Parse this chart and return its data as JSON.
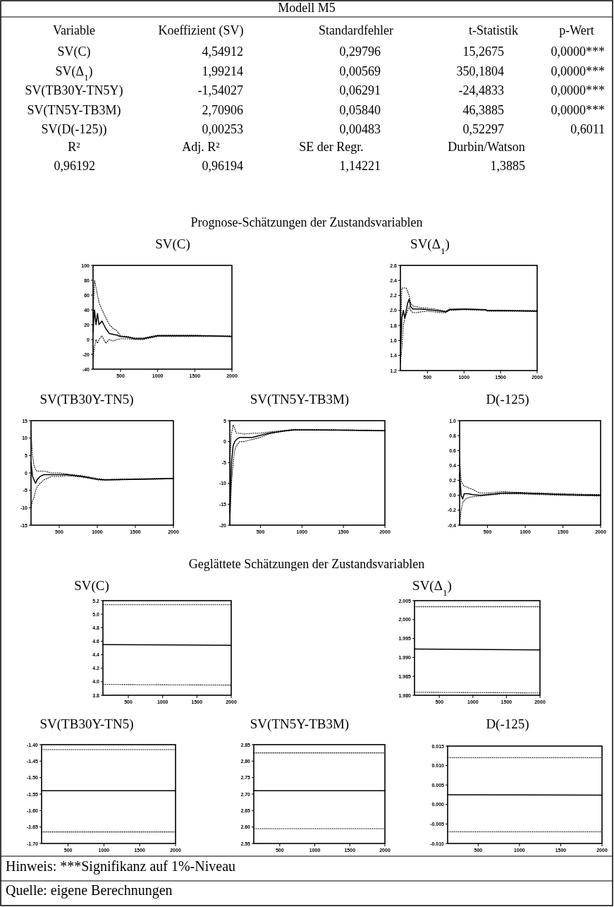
{
  "chart_data": [
    {
      "type": "other",
      "title": "Modell M5",
      "categories": [
        "Variable",
        "Koeffizient (SV)",
        "Standardfehler",
        "t-Statistik",
        "p-Wert"
      ],
      "annotations": [
        "SV(C)",
        "4,54912",
        "0,29796",
        "15,2675",
        "0,0000***",
        "SV(Δ$_{1}$)",
        "1,99214",
        "0,00569",
        "350,1804",
        "0,0000***",
        "SV(TB30Y-TN5Y)",
        "-1,54027",
        "0,06291",
        "-24,4833",
        "0,0000***",
        "SV(TN5Y-TB3M)",
        "2,70906",
        "0,05840",
        "46,3885",
        "0,0000***",
        "SV(D(-125))",
        "0,00253",
        "0,00483",
        "0,52297",
        "0,6011"
      ]
    },
    {
      "type": "other",
      "categories": [
        "R²",
        "Adj. R²",
        "SE der Regr.",
        "Durbin/Watson"
      ],
      "annotations": [
        "0,96192",
        "0,96194",
        "1,14221",
        "1,3885"
      ]
    },
    {
      "type": "line",
      "title": "SV(C)",
      "subtitle": "Prognose-Schätzungen der Zustandsvariablen",
      "xlim": [
        130,
        2000
      ],
      "xticks": [
        500,
        1000,
        1500,
        2000
      ],
      "ylim": [
        -40,
        100
      ],
      "yticks": [
        -40,
        -20,
        0,
        20,
        40,
        60,
        80,
        100
      ],
      "x": [
        130,
        150,
        170,
        190,
        210,
        250,
        300,
        350,
        400,
        450,
        500,
        600,
        700,
        800,
        900,
        1000,
        1200,
        1500,
        1700,
        2000
      ],
      "series": [
        {
          "color": "#000000",
          "line_style": "solid",
          "values": [
            10,
            40,
            20,
            35,
            20,
            25,
            15,
            8,
            7,
            6,
            4,
            3,
            1,
            1,
            3,
            5,
            5,
            5,
            5,
            4
          ]
        },
        {
          "color": "#000000",
          "line_style": "dotted",
          "values": [
            30,
            80,
            70,
            60,
            50,
            40,
            30,
            20,
            15,
            12,
            5,
            4,
            2,
            2,
            4,
            6,
            6,
            6,
            5,
            5
          ]
        },
        {
          "color": "#000000",
          "line_style": "dotted",
          "values": [
            -25,
            -10,
            0,
            -5,
            0,
            5,
            -5,
            0,
            -2,
            0,
            1,
            1,
            0,
            0,
            2,
            4,
            4,
            4,
            4,
            4
          ]
        }
      ]
    },
    {
      "type": "line",
      "title": "SV(Δ$_{1}$)",
      "xlim": [
        130,
        2000
      ],
      "xticks": [
        500,
        1000,
        1500,
        2000
      ],
      "ylim": [
        1.2,
        2.6
      ],
      "yticks": [
        1.2,
        1.4,
        1.6,
        1.8,
        {
          "value": 2,
          "label": "2.0"
        },
        2.2,
        2.4,
        2.6
      ],
      "x": [
        130,
        150,
        170,
        190,
        210,
        230,
        250,
        270,
        300,
        350,
        400,
        500,
        600,
        700,
        750,
        800,
        1000,
        1300,
        1320,
        1500,
        2000
      ],
      "series": [
        {
          "color": "#000000",
          "line_style": "solid",
          "values": [
            1.4,
            1.9,
            2.0,
            1.9,
            2.0,
            2.1,
            2.15,
            2.05,
            2.02,
            2.02,
            2.02,
            2.01,
            2.0,
            1.99,
            1.98,
            2.01,
            2.02,
            2.01,
            2.0,
            2.0,
            1.99
          ]
        },
        {
          "color": "#000000",
          "line_style": "dotted",
          "values": [
            1.6,
            2.3,
            2.3,
            2.3,
            2.3,
            2.25,
            2.2,
            2.1,
            2.06,
            2.05,
            2.04,
            2.03,
            2.02,
            2.0,
            1.99,
            2.02,
            2.02,
            2.01,
            2.0,
            2.0,
            2.0
          ]
        },
        {
          "color": "#000000",
          "line_style": "dotted",
          "values": [
            1.3,
            1.5,
            1.8,
            1.9,
            1.95,
            2.0,
            2.05,
            2.0,
            1.97,
            1.97,
            1.98,
            1.99,
            1.98,
            1.97,
            1.97,
            2.0,
            2.01,
            2.0,
            1.99,
            1.99,
            1.99
          ]
        }
      ]
    },
    {
      "type": "line",
      "title": "SV(TB30Y-TN5)",
      "xlim": [
        130,
        2000
      ],
      "xticks": [
        500,
        1000,
        1500,
        2000
      ],
      "ylim": [
        -15,
        15
      ],
      "yticks": [
        -15,
        -10,
        -5,
        0,
        5,
        10,
        15
      ],
      "x": [
        130,
        150,
        170,
        190,
        210,
        250,
        300,
        400,
        500,
        600,
        800,
        1000,
        1100,
        1500,
        2000
      ],
      "series": [
        {
          "color": "#000000",
          "line_style": "solid",
          "values": [
            3,
            -1,
            -2,
            -3,
            -2,
            -1,
            -0.5,
            -0.5,
            -0.5,
            -0.5,
            -1,
            -1.8,
            -2,
            -1.8,
            -1.6
          ]
        },
        {
          "color": "#000000",
          "line_style": "dotted",
          "values": [
            12,
            5,
            2,
            1,
            0.5,
            0.5,
            0.5,
            0,
            0,
            -0.3,
            -0.8,
            -1.6,
            -1.9,
            -1.7,
            -1.5
          ]
        },
        {
          "color": "#000000",
          "line_style": "dotted",
          "values": [
            -10,
            -8,
            -7,
            -5,
            -4,
            -3,
            -2,
            -1,
            -1,
            -0.8,
            -1.2,
            -2,
            -2.1,
            -1.9,
            -1.7
          ]
        }
      ]
    },
    {
      "type": "line",
      "title": "SV(TN5Y-TB3M)",
      "xlim": [
        130,
        2000
      ],
      "xticks": [
        500,
        1000,
        1500,
        2000
      ],
      "ylim": [
        -20,
        5
      ],
      "yticks": [
        -20,
        -15,
        -10,
        -5,
        0,
        5
      ],
      "x": [
        130,
        150,
        170,
        190,
        210,
        250,
        300,
        400,
        500,
        600,
        700,
        800,
        900,
        1000,
        1500,
        2000
      ],
      "series": [
        {
          "color": "#000000",
          "line_style": "solid",
          "values": [
            -17,
            -5,
            -1,
            0,
            0.5,
            1,
            1,
            1,
            1.5,
            2,
            2.3,
            2.6,
            2.8,
            2.8,
            2.7,
            2.6
          ]
        },
        {
          "color": "#000000",
          "line_style": "dotted",
          "values": [
            -5,
            2,
            4,
            3,
            2,
            2,
            1.8,
            2,
            2,
            2.3,
            2.5,
            2.7,
            2.9,
            2.9,
            2.8,
            2.7
          ]
        },
        {
          "color": "#000000",
          "line_style": "dotted",
          "values": [
            -20,
            -10,
            -5,
            -2,
            -1,
            0,
            0,
            0.5,
            1,
            1.8,
            2.2,
            2.5,
            2.7,
            2.8,
            2.7,
            2.6
          ]
        }
      ]
    },
    {
      "type": "line",
      "title": "D(-125)",
      "xlim": [
        130,
        2000
      ],
      "xticks": [
        500,
        1000,
        1500,
        2000
      ],
      "ylim": [
        -0.4,
        1.0
      ],
      "yticks": [
        -0.4,
        -0.2,
        {
          "value": 0,
          "label": "0.0"
        },
        0.2,
        0.4,
        0.6,
        0.8,
        {
          "value": 1,
          "label": "1.0"
        }
      ],
      "x": [
        130,
        150,
        170,
        190,
        210,
        250,
        300,
        400,
        500,
        700,
        900,
        1200,
        1500,
        2000
      ],
      "series": [
        {
          "color": "#000000",
          "line_style": "solid",
          "values": [
            0.3,
            0,
            -0.05,
            0.02,
            0.02,
            0.02,
            0.01,
            0,
            0.01,
            0.03,
            0.03,
            0.02,
            0.01,
            0
          ]
        },
        {
          "color": "#000000",
          "line_style": "dotted",
          "values": [
            0.5,
            0.2,
            0.15,
            0.12,
            0.12,
            0.1,
            0.08,
            0.03,
            0.03,
            0.05,
            0.04,
            0.03,
            0.02,
            0.01
          ]
        },
        {
          "color": "#000000",
          "line_style": "dotted",
          "values": [
            -0.4,
            -0.2,
            -0.1,
            -0.07,
            -0.05,
            -0.03,
            -0.02,
            -0.01,
            0,
            0.02,
            0.02,
            0.01,
            0,
            -0.01
          ]
        }
      ]
    },
    {
      "type": "line",
      "title": "SV(C)",
      "subtitle": "Geglättete Schätzungen der Zustandsvariablen",
      "xlim": [
        130,
        2000
      ],
      "xticks": [
        500,
        1000,
        1500,
        2000
      ],
      "ylim": [
        3.8,
        5.2
      ],
      "yticks": [
        3.8,
        {
          "value": 4,
          "label": "4.0"
        },
        4.2,
        4.4,
        4.6,
        4.8,
        {
          "value": 5,
          "label": "5.0"
        },
        5.2
      ],
      "x": [
        130,
        2000
      ],
      "series": [
        {
          "color": "#000000",
          "line_style": "solid",
          "values": [
            4.55,
            4.54
          ]
        },
        {
          "color": "#000000",
          "line_style": "dotted",
          "values": [
            5.14,
            5.14
          ]
        },
        {
          "color": "#000000",
          "line_style": "dotted",
          "values": [
            3.96,
            3.95
          ]
        }
      ]
    },
    {
      "type": "line",
      "title": "SV(Δ$_{1}$)",
      "xlim": [
        130,
        2000
      ],
      "xticks": [
        500,
        1000,
        1500,
        2000
      ],
      "ylim": [
        1.98,
        2.005
      ],
      "yticks": [
        {
          "value": 1.98,
          "label": "1.980"
        },
        1.985,
        {
          "value": 1.99,
          "label": "1.990"
        },
        1.995,
        {
          "value": 2,
          "label": "2.000"
        },
        2.005
      ],
      "x": [
        130,
        2000
      ],
      "series": [
        {
          "color": "#000000",
          "line_style": "solid",
          "values": [
            1.9922,
            1.992
          ]
        },
        {
          "color": "#000000",
          "line_style": "dotted",
          "values": [
            2.0034,
            2.0034
          ]
        },
        {
          "color": "#000000",
          "line_style": "dotted",
          "values": [
            1.9808,
            1.9806
          ]
        }
      ]
    },
    {
      "type": "line",
      "title": "SV(TB30Y-TN5)",
      "xlim": [
        130,
        2000
      ],
      "xticks": [
        500,
        1000,
        1500,
        2000
      ],
      "ylim": [
        -1.7,
        -1.4
      ],
      "yticks": [
        {
          "value": -1.7,
          "label": "-1.70"
        },
        -1.65,
        {
          "value": -1.6,
          "label": "-1.60"
        },
        -1.55,
        {
          "value": -1.5,
          "label": "-1.50"
        },
        -1.45,
        {
          "value": -1.4,
          "label": "-1.40"
        }
      ],
      "x": [
        130,
        2000
      ],
      "series": [
        {
          "color": "#000000",
          "line_style": "solid",
          "values": [
            -1.54,
            -1.54
          ]
        },
        {
          "color": "#000000",
          "line_style": "dotted",
          "values": [
            -1.415,
            -1.415
          ]
        },
        {
          "color": "#000000",
          "line_style": "dotted",
          "values": [
            -1.665,
            -1.665
          ]
        }
      ]
    },
    {
      "type": "line",
      "title": "SV(TN5Y-TB3M)",
      "xlim": [
        130,
        2000
      ],
      "xticks": [
        500,
        1000,
        1500,
        2000
      ],
      "ylim": [
        2.55,
        2.85
      ],
      "yticks": [
        2.55,
        {
          "value": 2.6,
          "label": "2.60"
        },
        2.65,
        {
          "value": 2.7,
          "label": "2.70"
        },
        2.75,
        {
          "value": 2.8,
          "label": "2.80"
        },
        2.85
      ],
      "x": [
        130,
        2000
      ],
      "series": [
        {
          "color": "#000000",
          "line_style": "solid",
          "values": [
            2.71,
            2.71
          ]
        },
        {
          "color": "#000000",
          "line_style": "dotted",
          "values": [
            2.825,
            2.825
          ]
        },
        {
          "color": "#000000",
          "line_style": "dotted",
          "values": [
            2.595,
            2.595
          ]
        }
      ]
    },
    {
      "type": "line",
      "title": "D(-125)",
      "xlim": [
        130,
        2000
      ],
      "xticks": [
        500,
        1000,
        1500,
        2000
      ],
      "ylim": [
        -0.01,
        0.015
      ],
      "yticks": [
        {
          "value": -0.01,
          "label": "-0.010"
        },
        -0.005,
        {
          "value": 0,
          "label": "0.000"
        },
        0.005,
        {
          "value": 0.01,
          "label": "0.010"
        },
        0.015
      ],
      "x": [
        130,
        2000
      ],
      "series": [
        {
          "color": "#000000",
          "line_style": "solid",
          "values": [
            0.0025,
            0.0024
          ]
        },
        {
          "color": "#000000",
          "line_style": "dotted",
          "values": [
            0.012,
            0.012
          ]
        },
        {
          "color": "#000000",
          "line_style": "dotted",
          "values": [
            -0.007,
            -0.007
          ]
        }
      ]
    },
    {
      "type": "other",
      "annotations": [
        "Hinweis: ***Signifikanz auf 1%-Niveau",
        "Quelle: eigene Berechnungen"
      ]
    }
  ]
}
